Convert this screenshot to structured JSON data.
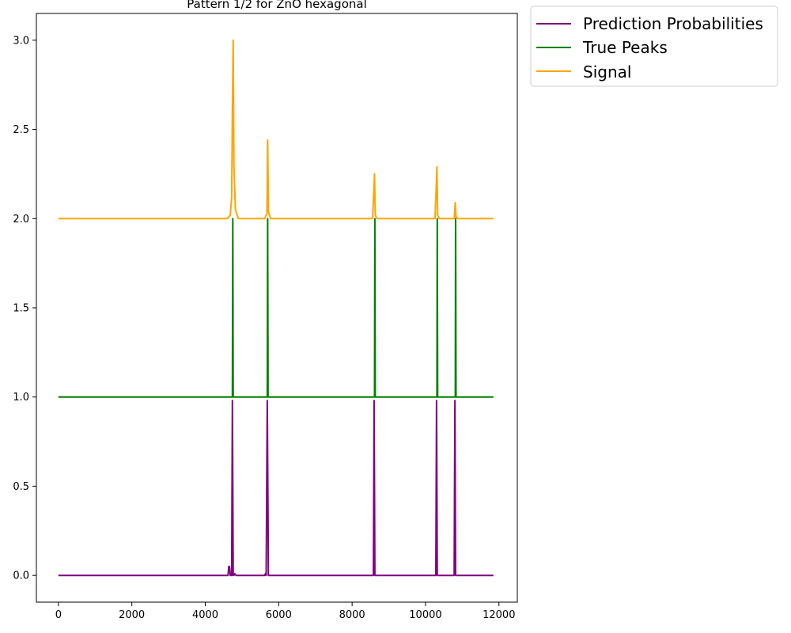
{
  "chart_data": {
    "type": "line",
    "title": "Pattern 1/2 for ZnO hexagonal",
    "xlabel": "",
    "ylabel": "",
    "xlim": [
      -600,
      12500
    ],
    "ylim": [
      -0.15,
      3.15
    ],
    "x_ticks": [
      {
        "value": 0,
        "label": "0"
      },
      {
        "value": 2000,
        "label": "2000"
      },
      {
        "value": 4000,
        "label": "4000"
      },
      {
        "value": 6000,
        "label": "6000"
      },
      {
        "value": 8000,
        "label": "8000"
      },
      {
        "value": 10000,
        "label": "10000"
      },
      {
        "value": 12000,
        "label": "12000"
      }
    ],
    "y_ticks": [
      {
        "value": 0.0,
        "label": "0.0"
      },
      {
        "value": 0.5,
        "label": "0.5"
      },
      {
        "value": 1.0,
        "label": "1.0"
      },
      {
        "value": 1.5,
        "label": "1.5"
      },
      {
        "value": 2.0,
        "label": "2.0"
      },
      {
        "value": 2.5,
        "label": "2.5"
      },
      {
        "value": 3.0,
        "label": "3.0"
      }
    ],
    "grid": false,
    "legend_position": "outside-top-right",
    "series": [
      {
        "name": "Prediction Probabilities",
        "color": "#800080",
        "x": [
          0,
          4620,
          4640,
          4660,
          4680,
          4700,
          4720,
          4740,
          4760,
          4780,
          4800,
          4840,
          5620,
          5640,
          5660,
          5690,
          5720,
          5740,
          8580,
          8600,
          8620,
          8640,
          10280,
          10300,
          10320,
          10340,
          10780,
          10800,
          10820,
          10840,
          11850
        ],
        "y": [
          0,
          0,
          0.05,
          0.05,
          0,
          0,
          0,
          0.98,
          0,
          0,
          0.01,
          0,
          0,
          0.01,
          0,
          0.98,
          0,
          0,
          0,
          0.98,
          0,
          0,
          0,
          0.98,
          0,
          0,
          0,
          0.98,
          0,
          0,
          0
        ]
      },
      {
        "name": "True Peaks",
        "color": "#008000",
        "x": [
          0,
          4740,
          4750,
          4760,
          5690,
          5700,
          5710,
          8610,
          8620,
          8630,
          10310,
          10320,
          10330,
          10810,
          10820,
          10830,
          11850
        ],
        "y": [
          1,
          1,
          2,
          1,
          1,
          2,
          1,
          1,
          2,
          1,
          1,
          2,
          1,
          1,
          2,
          1,
          1
        ]
      },
      {
        "name": "Signal",
        "color": "#ffa500",
        "x": [
          0,
          4600,
          4680,
          4720,
          4740,
          4760,
          4780,
          4820,
          4900,
          5620,
          5680,
          5700,
          5720,
          5780,
          8560,
          8610,
          8630,
          8680,
          10260,
          10310,
          10330,
          10380,
          10780,
          10810,
          10830,
          10880,
          11850
        ],
        "y": [
          2.0,
          2.0,
          2.02,
          2.12,
          2.6,
          3.0,
          2.3,
          2.05,
          2.0,
          2.0,
          2.03,
          2.44,
          2.04,
          2.0,
          2.0,
          2.25,
          2.02,
          2.0,
          2.0,
          2.29,
          2.02,
          2.0,
          2.0,
          2.09,
          2.01,
          2.0,
          2.0
        ]
      }
    ]
  }
}
